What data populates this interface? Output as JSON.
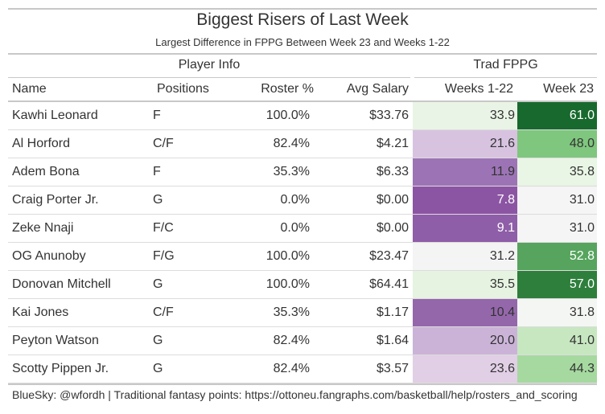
{
  "title": "Biggest Risers of Last Week",
  "subtitle": "Largest Difference in FPPG Between Week 23 and Weeks 1-22",
  "groups": {
    "player_info": "Player Info",
    "trad_fppg": "Trad FPPG"
  },
  "columns": {
    "name": "Name",
    "positions": "Positions",
    "roster": "Roster %",
    "salary": "Avg Salary",
    "weeks": "Weeks 1-22",
    "week23": "Week 23"
  },
  "rows": [
    {
      "name": "Kawhi Leonard",
      "pos": "F",
      "roster": "100.0%",
      "salary": "$33.76",
      "weeks": "33.9",
      "week23": "61.0",
      "weeks_color": "#eaf4e6",
      "week23_color": "#18692e",
      "weeks_text": "#333333",
      "week23_text": "#ffffff"
    },
    {
      "name": "Al Horford",
      "pos": "C/F",
      "roster": "82.4%",
      "salary": "$4.21",
      "weeks": "21.6",
      "week23": "48.0",
      "weeks_color": "#d7c3e0",
      "week23_color": "#7fc67e",
      "weeks_text": "#333333",
      "week23_text": "#333333"
    },
    {
      "name": "Adem Bona",
      "pos": "F",
      "roster": "35.3%",
      "salary": "$6.33",
      "weeks": "11.9",
      "week23": "35.8",
      "weeks_color": "#9c74b5",
      "week23_color": "#e9f5e5",
      "weeks_text": "#333333",
      "week23_text": "#333333"
    },
    {
      "name": "Craig Porter Jr.",
      "pos": "G",
      "roster": "0.0%",
      "salary": "$0.00",
      "weeks": "7.8",
      "week23": "31.0",
      "weeks_color": "#8c55a3",
      "week23_color": "#f5f5f5",
      "weeks_text": "#ffffff",
      "week23_text": "#333333"
    },
    {
      "name": "Zeke Nnaji",
      "pos": "F/C",
      "roster": "0.0%",
      "salary": "$0.00",
      "weeks": "9.1",
      "week23": "31.0",
      "weeks_color": "#8f5ea8",
      "week23_color": "#f5f5f5",
      "weeks_text": "#ffffff",
      "week23_text": "#333333"
    },
    {
      "name": "OG Anunoby",
      "pos": "F/G",
      "roster": "100.0%",
      "salary": "$23.47",
      "weeks": "31.2",
      "week23": "52.8",
      "weeks_color": "#f4f4f4",
      "week23_color": "#56a45d",
      "weeks_text": "#333333",
      "week23_text": "#ffffff"
    },
    {
      "name": "Donovan Mitchell",
      "pos": "G",
      "roster": "100.0%",
      "salary": "$64.41",
      "weeks": "35.5",
      "week23": "57.0",
      "weeks_color": "#e6f3e1",
      "week23_color": "#2e7f3c",
      "weeks_text": "#333333",
      "week23_text": "#ffffff"
    },
    {
      "name": "Kai Jones",
      "pos": "C/F",
      "roster": "35.3%",
      "salary": "$1.17",
      "weeks": "10.4",
      "week23": "31.8",
      "weeks_color": "#9467ab",
      "week23_color": "#f4f6f3",
      "weeks_text": "#333333",
      "week23_text": "#333333"
    },
    {
      "name": "Peyton Watson",
      "pos": "G",
      "roster": "82.4%",
      "salary": "$1.64",
      "weeks": "20.0",
      "week23": "41.0",
      "weeks_color": "#cbb3d8",
      "week23_color": "#c7e7c0",
      "weeks_text": "#333333",
      "week23_text": "#333333"
    },
    {
      "name": "Scotty Pippen Jr.",
      "pos": "G",
      "roster": "82.4%",
      "salary": "$3.57",
      "weeks": "23.6",
      "week23": "44.3",
      "weeks_color": "#e1cfe6",
      "week23_color": "#a6d9a0",
      "weeks_text": "#333333",
      "week23_text": "#333333"
    }
  ],
  "footer": "BlueSky: @wfordh | Traditional fantasy points: https://ottoneu.fangraphs.com/basketball/help/rosters_and_scoring"
}
